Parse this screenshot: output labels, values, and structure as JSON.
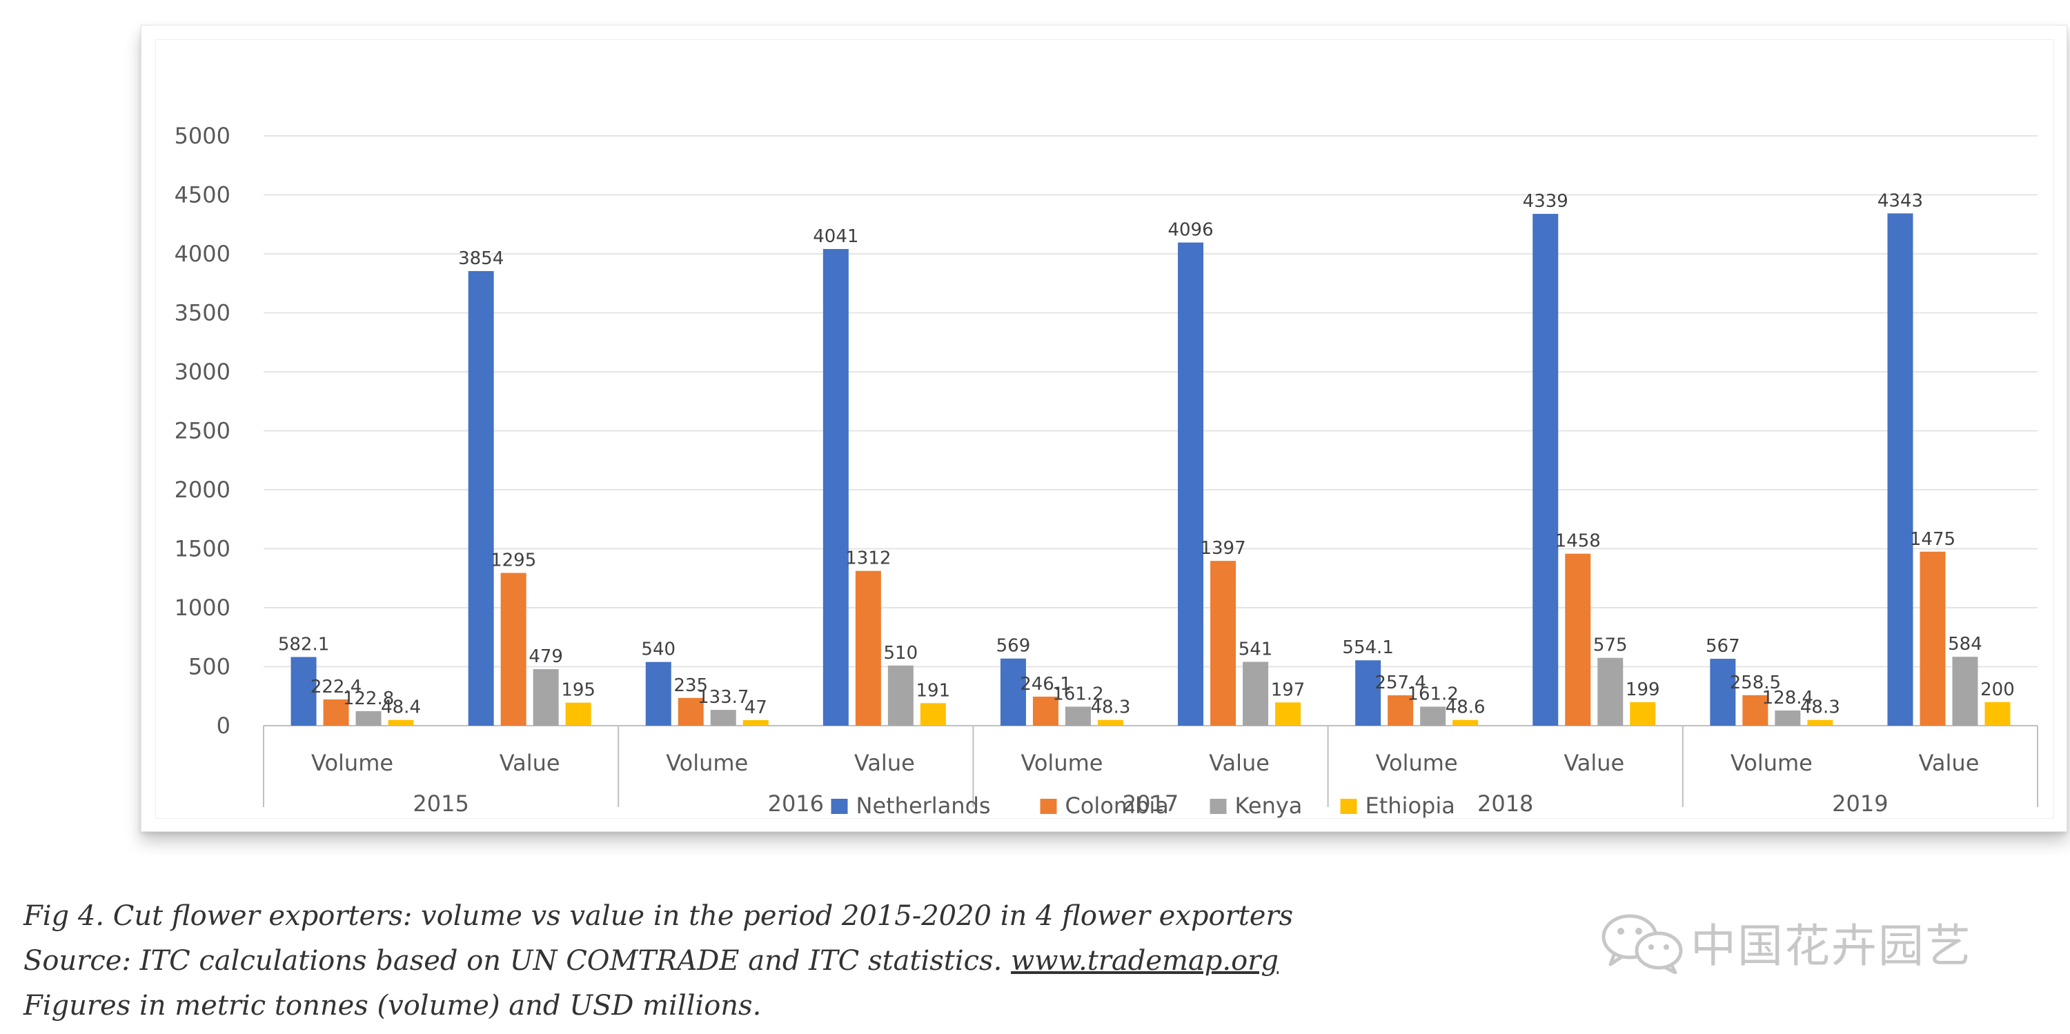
{
  "chart_data": {
    "type": "bar",
    "title": "",
    "xlabel": "",
    "ylabel": "",
    "ylim": [
      0,
      5000
    ],
    "yticks": [
      0,
      500,
      1000,
      1500,
      2000,
      2500,
      3000,
      3500,
      4000,
      4500,
      5000
    ],
    "grid": true,
    "legend_position": "bottom",
    "groups": [
      "2015",
      "2016",
      "2017",
      "2018",
      "2019"
    ],
    "subcategories": [
      "Volume",
      "Value"
    ],
    "series": [
      {
        "name": "Netherlands",
        "color": "#4472C4",
        "values": [
          582.1,
          3854,
          540,
          4041,
          569,
          4096,
          554.1,
          4339,
          567,
          4343
        ],
        "labels": [
          "582.1",
          "3854",
          "540",
          "4041",
          "569",
          "4096",
          "554.1",
          "4339",
          "567",
          "4343"
        ]
      },
      {
        "name": "Colombia",
        "color": "#ED7D31",
        "values": [
          222.4,
          1295,
          235,
          1312,
          246.1,
          1397,
          257.4,
          1458,
          258.5,
          1475
        ],
        "labels": [
          "222.4",
          "1295",
          "235",
          "1312",
          "246.1",
          "1397",
          "257.4",
          "1458",
          "258.5",
          "1475"
        ]
      },
      {
        "name": "Kenya",
        "color": "#A5A5A5",
        "values": [
          122.8,
          479,
          133.7,
          510,
          161.2,
          541,
          161.2,
          575,
          128.4,
          584
        ],
        "labels": [
          "122.8",
          "479",
          "133.7",
          "510",
          "161.2",
          "541",
          "161.2",
          "575",
          "128.4",
          "584"
        ]
      },
      {
        "name": "Ethiopia",
        "color": "#FFC000",
        "values": [
          48.4,
          195,
          47,
          191,
          48.3,
          197,
          48.6,
          199,
          48.3,
          200
        ],
        "labels": [
          "48.4",
          "195",
          "47",
          "191",
          "48.3",
          "197",
          "48.6",
          "199",
          "48.3",
          "200"
        ]
      }
    ]
  },
  "caption": {
    "line1": "Fig 4. Cut flower exporters: volume vs value in the period 2015-2020 in 4 flower exporters",
    "line2_prefix": "Source: ITC calculations based on UN COMTRADE and ITC statistics. ",
    "line2_link": "www.trademap.org",
    "line3": "Figures in metric tonnes (volume) and USD millions."
  },
  "watermark": {
    "text": "中国花卉园艺",
    "icon": "wechat-icon"
  }
}
